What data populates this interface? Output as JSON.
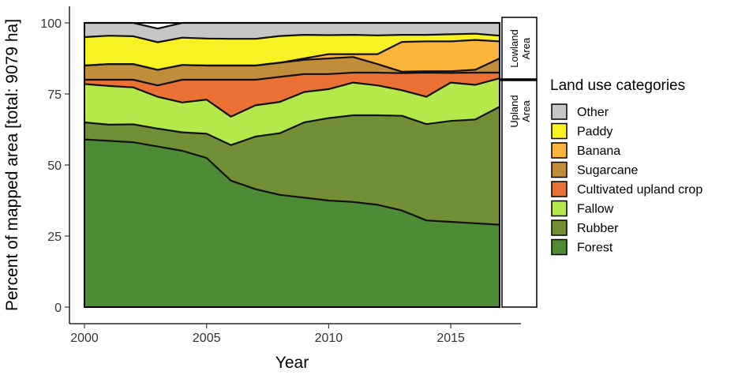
{
  "chart_data": {
    "type": "area",
    "stacked": true,
    "xlabel": "Year",
    "ylabel": "Percent of mapped area [total:  9079 ha]",
    "xlim": [
      2000,
      2017
    ],
    "ylim": [
      0,
      100
    ],
    "xticks": [
      2000,
      2005,
      2010,
      2015
    ],
    "yticks": [
      0,
      25,
      50,
      75,
      100
    ],
    "x": [
      2000,
      2001,
      2002,
      2003,
      2004,
      2005,
      2006,
      2007,
      2008,
      2009,
      2010,
      2011,
      2012,
      2013,
      2014,
      2015,
      2016,
      2017
    ],
    "legend_title": "Land use categories",
    "legend_position": "right",
    "series": [
      {
        "name": "Forest",
        "color": "#4e8b35",
        "values": [
          59,
          58.5,
          58,
          56.5,
          55,
          52.5,
          44.5,
          41.5,
          39.5,
          38.5,
          37.5,
          37,
          36,
          34,
          30.5,
          30,
          29.5,
          29
        ]
      },
      {
        "name": "Rubber",
        "color": "#728f36",
        "values": [
          6,
          5.7,
          6.3,
          6.3,
          6.5,
          8.5,
          12.5,
          18.5,
          21.7,
          26.5,
          29,
          30.5,
          31.5,
          33.3,
          33.9,
          35.5,
          36.5,
          41.5
        ]
      },
      {
        "name": "Fallow",
        "color": "#b5e84a",
        "values": [
          13.5,
          13.6,
          13,
          11.2,
          10.5,
          12,
          10,
          11,
          11,
          10.7,
          10.2,
          11.5,
          10.5,
          9,
          9.6,
          13.5,
          12.2,
          10
        ]
      },
      {
        "name": "Cultivated upland crop",
        "color": "#ea7034",
        "values": [
          1.5,
          2.2,
          2.7,
          4,
          8,
          7,
          13,
          9,
          8.8,
          6.3,
          5.3,
          3.5,
          4.5,
          6,
          8.5,
          3.4,
          4.3,
          2
        ]
      },
      {
        "name": "Sugarcane",
        "color": "#c08d3b",
        "values": [
          5,
          5.5,
          5.5,
          5.5,
          5.2,
          5,
          5,
          5,
          5,
          5,
          5.5,
          5.5,
          3,
          0.5,
          0.5,
          0.6,
          1,
          5
        ]
      },
      {
        "name": "Banana",
        "color": "#fbb53c",
        "values": [
          0,
          0,
          0,
          0,
          0,
          0,
          0,
          0,
          0,
          0.5,
          1.5,
          1,
          3.5,
          10.5,
          10.5,
          10.5,
          10.5,
          6
        ]
      },
      {
        "name": "Paddy",
        "color": "#f8f225",
        "values": [
          10,
          10,
          9.8,
          9.7,
          9.6,
          9.5,
          9.4,
          9.4,
          9.4,
          8.3,
          6.7,
          6.8,
          6.6,
          2.5,
          2.3,
          2.5,
          2.2,
          2
        ]
      },
      {
        "name": "Other",
        "color": "#c6c6c6",
        "values": [
          5,
          4.5,
          4.7,
          4.8,
          5.2,
          5.5,
          5.6,
          5.6,
          4.6,
          4.2,
          4.3,
          4.2,
          4.4,
          4.2,
          4.2,
          4,
          3.8,
          4.5
        ]
      }
    ],
    "facet_strips": [
      {
        "label_lines": [
          "Lowland",
          "Area"
        ],
        "y_range": [
          80,
          100
        ]
      },
      {
        "label_lines": [
          "Upland",
          "Area"
        ],
        "y_range": [
          0,
          80
        ]
      }
    ]
  }
}
